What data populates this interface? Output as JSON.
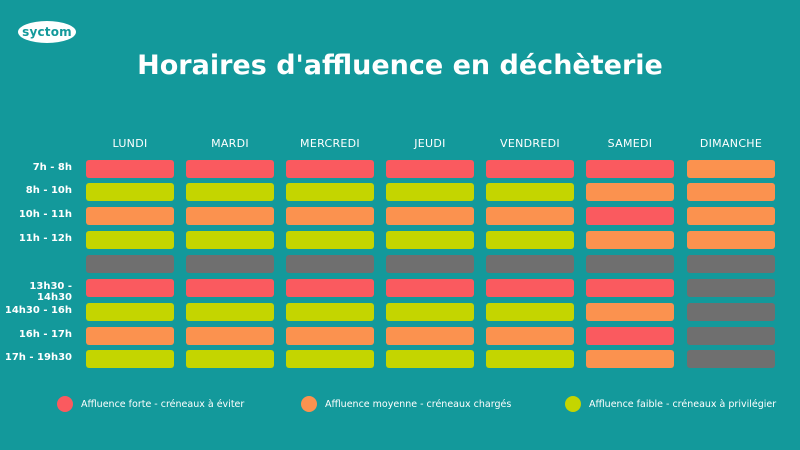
{
  "brand": "syctom",
  "title": "Horaires d'affluence en déchèterie",
  "days": [
    "LUNDI",
    "MARDI",
    "MERCREDI",
    "JEUDI",
    "VENDREDI",
    "SAMEDI",
    "DIMANCHE"
  ],
  "time_slots": [
    "7h - 8h",
    "8h - 10h",
    "10h - 11h",
    "11h - 12h",
    "",
    "13h30 - 14h30",
    "14h30 - 16h",
    "16h - 17h",
    "17h - 19h30"
  ],
  "levels": {
    "forte": "#fa5a5f",
    "moyenne": "#fb924f",
    "faible": "#c4d500",
    "ferme": "#6f6f6f"
  },
  "schedule": [
    [
      "forte",
      "forte",
      "forte",
      "forte",
      "forte",
      "forte",
      "moyenne"
    ],
    [
      "faible",
      "faible",
      "faible",
      "faible",
      "faible",
      "moyenne",
      "moyenne"
    ],
    [
      "moyenne",
      "moyenne",
      "moyenne",
      "moyenne",
      "moyenne",
      "forte",
      "moyenne"
    ],
    [
      "faible",
      "faible",
      "faible",
      "faible",
      "faible",
      "moyenne",
      "moyenne"
    ],
    [
      "ferme",
      "ferme",
      "ferme",
      "ferme",
      "ferme",
      "ferme",
      "ferme"
    ],
    [
      "forte",
      "forte",
      "forte",
      "forte",
      "forte",
      "forte",
      "ferme"
    ],
    [
      "faible",
      "faible",
      "faible",
      "faible",
      "faible",
      "moyenne",
      "ferme"
    ],
    [
      "moyenne",
      "moyenne",
      "moyenne",
      "moyenne",
      "moyenne",
      "forte",
      "ferme"
    ],
    [
      "faible",
      "faible",
      "faible",
      "faible",
      "faible",
      "moyenne",
      "ferme"
    ]
  ],
  "legend": [
    {
      "level": "forte",
      "label": "Affluence forte - créneaux à éviter"
    },
    {
      "level": "moyenne",
      "label": "Affluence moyenne - créneaux chargés"
    },
    {
      "level": "faible",
      "label": "Affluence faible - créneaux à privilégier"
    }
  ]
}
